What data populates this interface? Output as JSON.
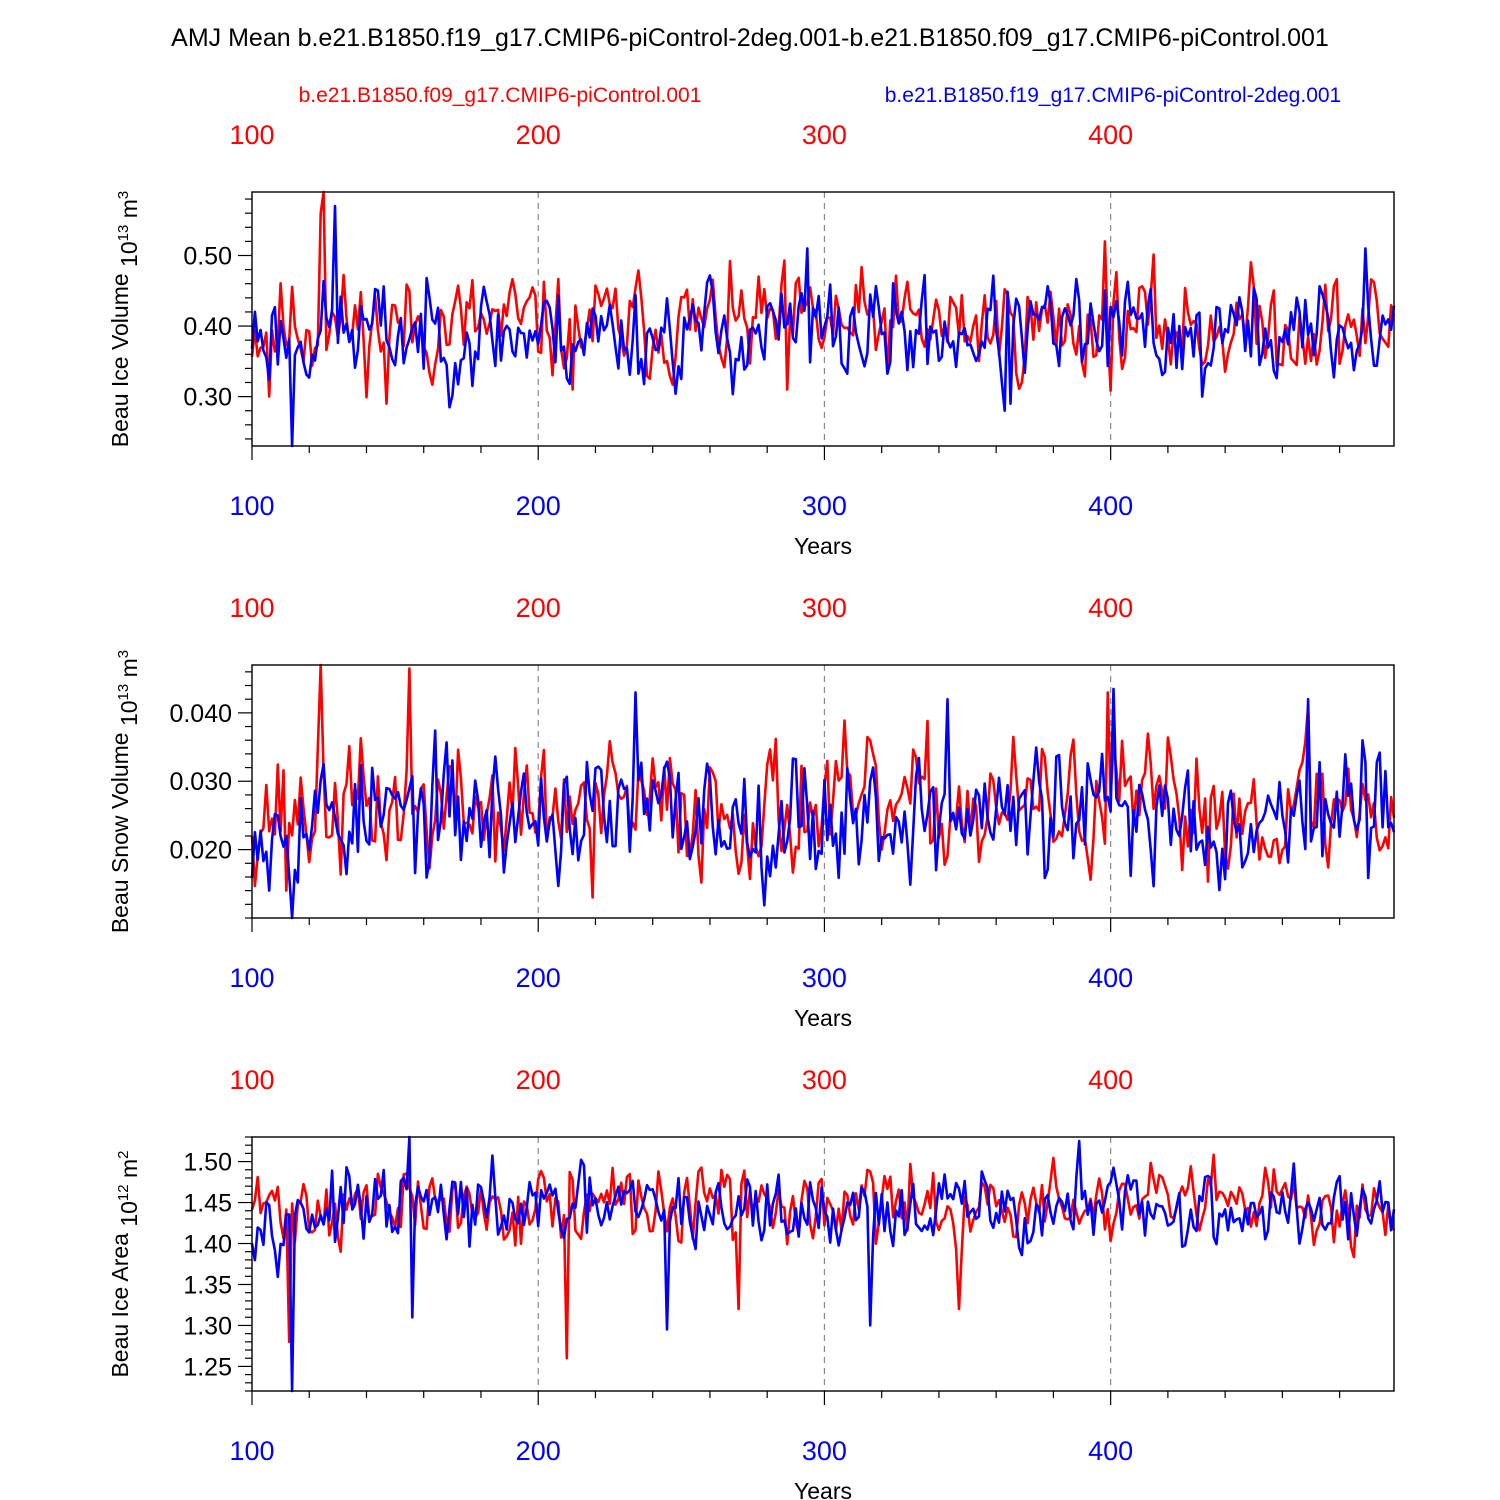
{
  "figure": {
    "title": "AMJ Mean b.e21.B1850.f19_g17.CMIP6-piControl-2deg.001-b.e21.B1850.f09_g17.CMIP6-piControl.001",
    "legend_red": "b.e21.B1850.f09_g17.CMIP6-piControl.001",
    "legend_blue": "b.e21.B1850.f19_g17.CMIP6-piControl-2deg.001",
    "colors": {
      "red": "#ff0000",
      "blue": "#0000ff",
      "axis": "#000000",
      "grid": "#888888"
    }
  },
  "chart_data": [
    {
      "type": "line",
      "name": "ice-volume",
      "ylabel": "Beau Ice Volume",
      "yunit": "10^13 m^3",
      "yunit_base": "10",
      "yunit_exp": "13",
      "yunit_tail": "m",
      "yunit_tail_exp": "3",
      "xlabel": "Years",
      "xlim": [
        100,
        499
      ],
      "ylim": [
        0.23,
        0.59
      ],
      "yticks": [
        0.3,
        0.4,
        0.5
      ],
      "ytick_labels": [
        "0.30",
        "0.40",
        "0.50"
      ],
      "ytick_decimals": 2,
      "xticks": [
        100,
        200,
        300,
        400
      ],
      "xtick_labels": [
        "100",
        "200",
        "300",
        "400"
      ],
      "x_gridlines": [
        200,
        300,
        400
      ],
      "series": [
        {
          "name": "b.e21.B1850.f09_g17.CMIP6-piControl.001",
          "color": "red",
          "mean": 0.4,
          "amp": 0.055,
          "seed": 11,
          "extremes": [
            [
              125,
              0.59
            ],
            [
              124,
              0.56
            ],
            [
              106,
              0.3
            ],
            [
              147,
              0.29
            ],
            [
              287,
              0.31
            ],
            [
              398,
              0.52
            ],
            [
              212,
              0.31
            ]
          ]
        },
        {
          "name": "b.e21.B1850.f19_g17.CMIP6-piControl-2deg.001",
          "color": "blue",
          "mean": 0.39,
          "amp": 0.055,
          "seed": 23,
          "extremes": [
            [
              114,
              0.23
            ],
            [
              129,
              0.57
            ],
            [
              294,
              0.51
            ],
            [
              365,
              0.29
            ],
            [
              432,
              0.3
            ],
            [
              489,
              0.51
            ],
            [
              363,
              0.28
            ]
          ]
        }
      ]
    },
    {
      "type": "line",
      "name": "snow-volume",
      "ylabel": "Beau Snow Volume",
      "yunit": "10^13 m^3",
      "yunit_base": "10",
      "yunit_exp": "13",
      "yunit_tail": "m",
      "yunit_tail_exp": "3",
      "xlabel": "Years",
      "xlim": [
        100,
        499
      ],
      "ylim": [
        0.01,
        0.047
      ],
      "yticks": [
        0.02,
        0.03,
        0.04
      ],
      "ytick_labels": [
        "0.020",
        "0.030",
        "0.040"
      ],
      "ytick_decimals": 3,
      "xticks": [
        100,
        200,
        300,
        400
      ],
      "xtick_labels": [
        "100",
        "200",
        "300",
        "400"
      ],
      "x_gridlines": [
        200,
        300,
        400
      ],
      "series": [
        {
          "name": "b.e21.B1850.f09_g17.CMIP6-piControl.001",
          "color": "red",
          "mean": 0.026,
          "amp": 0.007,
          "seed": 37,
          "extremes": [
            [
              124,
              0.047
            ],
            [
              155,
              0.0465
            ],
            [
              219,
              0.013
            ],
            [
              112,
              0.014
            ],
            [
              399,
              0.043
            ],
            [
              469,
              0.041
            ]
          ]
        },
        {
          "name": "b.e21.B1850.f19_g17.CMIP6-piControl-2deg.001",
          "color": "blue",
          "mean": 0.025,
          "amp": 0.007,
          "seed": 53,
          "extremes": [
            [
              114,
              0.01
            ],
            [
              234,
              0.043
            ],
            [
              401,
              0.0435
            ],
            [
              343,
              0.042
            ],
            [
              469,
              0.042
            ],
            [
              106,
              0.014
            ]
          ]
        }
      ]
    },
    {
      "type": "line",
      "name": "ice-area",
      "ylabel": "Beau Ice Area",
      "yunit": "10^12 m^2",
      "yunit_base": "10",
      "yunit_exp": "12",
      "yunit_tail": "m",
      "yunit_tail_exp": "2",
      "xlabel": "Years",
      "xlim": [
        100,
        499
      ],
      "ylim": [
        1.22,
        1.53
      ],
      "yticks": [
        1.25,
        1.3,
        1.35,
        1.4,
        1.45,
        1.5
      ],
      "ytick_labels": [
        "1.25",
        "1.30",
        "1.35",
        "1.40",
        "1.45",
        "1.50"
      ],
      "ytick_decimals": 2,
      "xticks": [
        100,
        200,
        300,
        400
      ],
      "xtick_labels": [
        "100",
        "200",
        "300",
        "400"
      ],
      "x_gridlines": [
        200,
        300,
        400
      ],
      "series": [
        {
          "name": "b.e21.B1850.f09_g17.CMIP6-piControl.001",
          "color": "red",
          "mean": 1.445,
          "amp": 0.035,
          "seed": 71,
          "extremes": [
            [
              210,
              1.26
            ],
            [
              113,
              1.28
            ],
            [
              347,
              1.32
            ],
            [
              270,
              1.32
            ]
          ]
        },
        {
          "name": "b.e21.B1850.f19_g17.CMIP6-piControl-2deg.001",
          "color": "blue",
          "mean": 1.44,
          "amp": 0.035,
          "seed": 97,
          "extremes": [
            [
              114,
              1.22
            ],
            [
              155,
              1.53
            ],
            [
              156,
              1.31
            ],
            [
              245,
              1.295
            ],
            [
              316,
              1.3
            ],
            [
              389,
              1.525
            ]
          ]
        }
      ]
    }
  ]
}
